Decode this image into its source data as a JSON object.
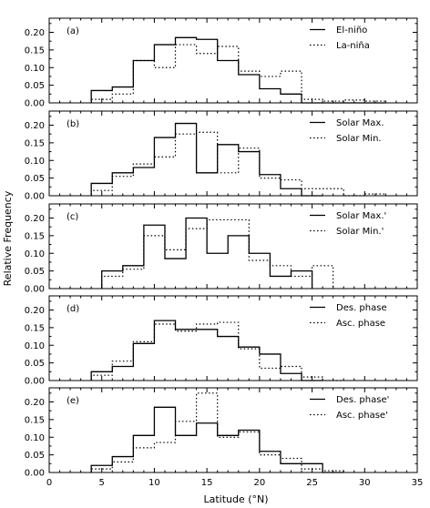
{
  "figure": {
    "xlabel": "Latitude (°N)",
    "ylabel": "Relative Frequency",
    "xticks": [
      "0",
      "5",
      "10",
      "15",
      "20",
      "25",
      "30",
      "35"
    ],
    "yticks": [
      "0.00",
      "0.05",
      "0.10",
      "0.15",
      "0.20"
    ]
  },
  "chart_data": [
    {
      "type": "step",
      "panel_label": "(a)",
      "xlim": [
        0,
        35
      ],
      "ylim": [
        0,
        0.24
      ],
      "bin_width": 2,
      "grid": false,
      "legend_position": "top-right",
      "series": [
        {
          "name": "El-niño",
          "style": "solid",
          "bin_starts": [
            4,
            6,
            8,
            10,
            12,
            14,
            16,
            18,
            20,
            22,
            24,
            26,
            28,
            30
          ],
          "values": [
            0.035,
            0.045,
            0.12,
            0.165,
            0.185,
            0.18,
            0.12,
            0.08,
            0.04,
            0.025,
            0.0,
            0.0,
            0.0,
            0.0
          ]
        },
        {
          "name": "La-niña",
          "style": "dotted",
          "bin_starts": [
            4,
            6,
            8,
            10,
            12,
            14,
            16,
            18,
            20,
            22,
            24,
            26,
            28,
            30
          ],
          "values": [
            0.01,
            0.025,
            0.12,
            0.1,
            0.165,
            0.14,
            0.16,
            0.09,
            0.075,
            0.09,
            0.01,
            0.005,
            0.008,
            0.005
          ]
        }
      ]
    },
    {
      "type": "step",
      "panel_label": "(b)",
      "xlim": [
        0,
        35
      ],
      "ylim": [
        0,
        0.24
      ],
      "bin_width": 2,
      "grid": false,
      "legend_position": "top-right",
      "series": [
        {
          "name": "Solar Max.",
          "style": "solid",
          "bin_starts": [
            4,
            6,
            8,
            10,
            12,
            14,
            16,
            18,
            20,
            22,
            24
          ],
          "values": [
            0.035,
            0.065,
            0.08,
            0.165,
            0.205,
            0.065,
            0.145,
            0.125,
            0.06,
            0.02,
            0.0
          ]
        },
        {
          "name": "Solar Min.",
          "style": "dotted",
          "bin_starts": [
            4,
            6,
            8,
            10,
            12,
            14,
            16,
            18,
            20,
            22,
            24,
            26,
            28,
            30
          ],
          "values": [
            0.015,
            0.055,
            0.09,
            0.11,
            0.175,
            0.18,
            0.065,
            0.135,
            0.05,
            0.045,
            0.02,
            0.02,
            0.0,
            0.005
          ]
        }
      ]
    },
    {
      "type": "step",
      "panel_label": "(c)",
      "xlim": [
        0,
        35
      ],
      "ylim": [
        0,
        0.24
      ],
      "bin_width": 2,
      "grid": false,
      "legend_position": "top-right",
      "series": [
        {
          "name": "Solar Max.'",
          "style": "solid",
          "bin_starts": [
            5,
            7,
            9,
            11,
            13,
            15,
            17,
            19,
            21,
            23
          ],
          "values": [
            0.05,
            0.065,
            0.18,
            0.085,
            0.2,
            0.1,
            0.15,
            0.1,
            0.035,
            0.05
          ]
        },
        {
          "name": "Solar Min.'",
          "style": "dotted",
          "bin_starts": [
            5,
            7,
            9,
            11,
            13,
            15,
            17,
            19,
            21,
            23,
            25
          ],
          "values": [
            0.035,
            0.055,
            0.15,
            0.11,
            0.17,
            0.195,
            0.195,
            0.08,
            0.065,
            0.035,
            0.065
          ]
        }
      ]
    },
    {
      "type": "step",
      "panel_label": "(d)",
      "xlim": [
        0,
        35
      ],
      "ylim": [
        0,
        0.24
      ],
      "bin_width": 2,
      "grid": false,
      "legend_position": "top-right",
      "series": [
        {
          "name": "Des. phase",
          "style": "solid",
          "bin_starts": [
            4,
            6,
            8,
            10,
            12,
            14,
            16,
            18,
            20,
            22,
            24
          ],
          "values": [
            0.025,
            0.04,
            0.105,
            0.17,
            0.145,
            0.145,
            0.125,
            0.095,
            0.075,
            0.02,
            0.0
          ]
        },
        {
          "name": "Asc. phase",
          "style": "dotted",
          "bin_starts": [
            4,
            6,
            8,
            10,
            12,
            14,
            16,
            18,
            20,
            22,
            24,
            26
          ],
          "values": [
            0.015,
            0.055,
            0.11,
            0.16,
            0.14,
            0.16,
            0.165,
            0.09,
            0.035,
            0.04,
            0.01,
            0.0
          ]
        }
      ]
    },
    {
      "type": "step",
      "panel_label": "(e)",
      "xlim": [
        0,
        35
      ],
      "ylim": [
        0,
        0.24
      ],
      "bin_width": 2,
      "grid": false,
      "legend_position": "top-right",
      "series": [
        {
          "name": "Des. phase'",
          "style": "solid",
          "bin_starts": [
            4,
            6,
            8,
            10,
            12,
            14,
            16,
            18,
            20,
            22,
            24,
            26
          ],
          "values": [
            0.02,
            0.045,
            0.105,
            0.185,
            0.105,
            0.14,
            0.105,
            0.12,
            0.06,
            0.025,
            0.025,
            0.0
          ]
        },
        {
          "name": "Asc. phase'",
          "style": "dotted",
          "bin_starts": [
            4,
            6,
            8,
            10,
            12,
            14,
            16,
            18,
            20,
            22,
            24,
            26
          ],
          "values": [
            0.01,
            0.03,
            0.07,
            0.085,
            0.145,
            0.225,
            0.1,
            0.115,
            0.05,
            0.04,
            0.01,
            0.005
          ]
        }
      ]
    }
  ]
}
